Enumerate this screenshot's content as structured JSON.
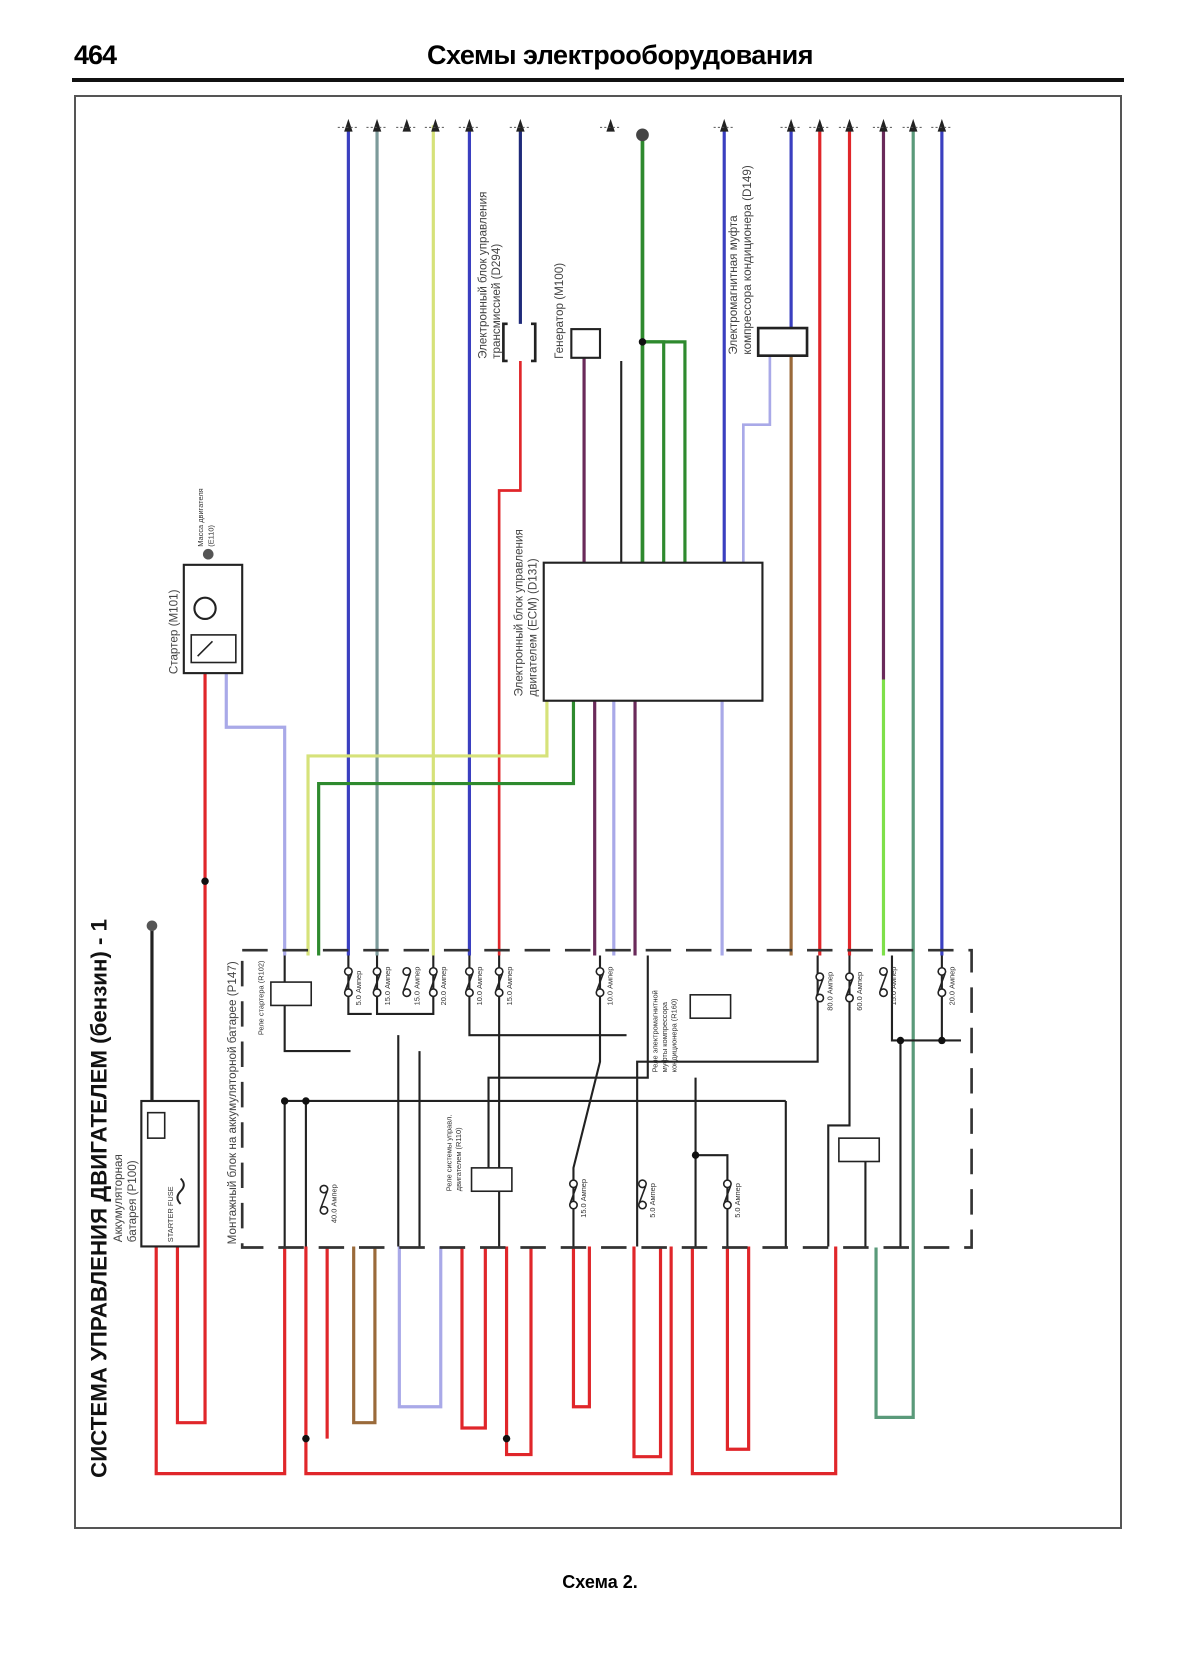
{
  "header": {
    "page_number": "464",
    "title": "Схемы электрооборудования"
  },
  "caption": "Схема 2.",
  "diagram": {
    "title": "СИСТЕМА УПРАВЛЕНИЯ ДВИГАТЕЛЕМ (бензин) - 1",
    "components": {
      "starter": "Стартер (M101)",
      "engine_ground_1": "Масса двигателя",
      "engine_ground_2": "(E110)",
      "battery_1": "Аккумуляторная",
      "battery_2": "батарея (P100)",
      "starter_fuse": "STARTER FUSE",
      "mounting_block": "Монтажный блок на аккумуляторной батарее (P147)",
      "ecm_1": "Электронный блок управления",
      "ecm_2": "двигателем (ECM) (D131)",
      "tcm_1": "Электронный блок управления",
      "tcm_2": "трансмиссией (D294)",
      "generator": "Генератор (M100)",
      "ac_clutch_1": "Электромагнитная муфта",
      "ac_clutch_2": "компрессора кондиционера (D149)",
      "starter_relay": "Реле стартера (R102)",
      "ecm_relay_1": "Реле системы управл.",
      "ecm_relay_2": "двигателем (R110)",
      "ac_relay_1": "Реле электромагнитной",
      "ac_relay_2": "муфты компрессора",
      "ac_relay_3": "кондиционера (R160)"
    },
    "fuses": [
      {
        "rating": "5.0 Ампер"
      },
      {
        "rating": "15.0 Ампер"
      },
      {
        "rating": "15.0 Ампер"
      },
      {
        "rating": "20.0 Ампер"
      },
      {
        "rating": "10.0 Ампер"
      },
      {
        "rating": "15.0 Ампер"
      },
      {
        "rating": "10.0 Ампер"
      },
      {
        "rating": "80.0 Ампер"
      },
      {
        "rating": "60.0 Ампер"
      },
      {
        "rating": "15.0 Ампер"
      },
      {
        "rating": "20.0 Ампер"
      },
      {
        "rating": "40.0 Ампер"
      },
      {
        "rating": "15.0 Ампер"
      },
      {
        "rating": "5.0 Ампер"
      },
      {
        "rating": "5.0 Ампер"
      }
    ],
    "wire_colors": {
      "red": "#e0262a",
      "blue": "#3a3fc0",
      "navy": "#1f2a7a",
      "gray": "#7c9a9a",
      "yellow": "#d6e27a",
      "green": "#2e8a2e",
      "lime": "#7ee04a",
      "purple": "#6a2a5a",
      "lavender": "#a9a9e8",
      "brown": "#9a6a3a",
      "teal": "#5a9a7a",
      "black": "#222222"
    }
  }
}
